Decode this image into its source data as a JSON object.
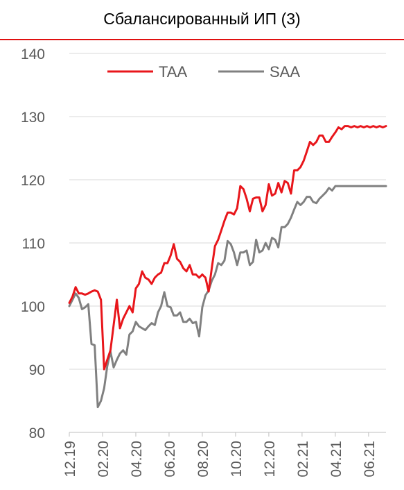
{
  "title": "Сбалансированный ИП (3)",
  "colors": {
    "accent": "#E01010",
    "taa": "#E8161B",
    "saa": "#808080",
    "axis": "#BFBFBF",
    "grid": "#D9D9D9",
    "text": "#595959"
  },
  "chart_data": {
    "type": "line",
    "ylim": [
      80,
      140
    ],
    "yticks": [
      80,
      90,
      100,
      110,
      120,
      130,
      140
    ],
    "xlim": [
      0,
      100
    ],
    "xtick_labels": [
      "12.19",
      "02.20",
      "04.20",
      "06.20",
      "08.20",
      "10.20",
      "12.20",
      "02.21",
      "04.21",
      "06.21"
    ],
    "xtick_positions": [
      0,
      10.5,
      21,
      31.5,
      42,
      52.5,
      63,
      73.5,
      84,
      94.5
    ],
    "grid": true,
    "legend": "top-left",
    "series": [
      {
        "name": "TAA",
        "color": "#E8161B",
        "x": [
          0,
          1,
          2,
          3,
          4,
          5,
          6,
          7,
          8,
          9,
          10,
          11,
          12,
          13,
          14,
          15,
          16,
          17,
          18,
          19,
          20,
          21,
          22,
          23,
          24,
          25,
          26,
          27,
          28,
          29,
          30,
          31,
          32,
          33,
          34,
          35,
          36,
          37,
          38,
          39,
          40,
          41,
          42,
          43,
          44,
          45,
          46,
          47,
          48,
          49,
          50,
          51,
          52,
          53,
          54,
          55,
          56,
          57,
          58,
          59,
          60,
          61,
          62,
          63,
          64,
          65,
          66,
          67,
          68,
          69,
          70,
          71,
          72,
          73,
          74,
          75,
          76,
          77,
          78,
          79,
          80,
          81,
          82,
          83,
          84,
          85,
          86,
          87,
          88,
          89,
          90,
          91,
          92,
          93,
          94,
          95,
          96,
          97,
          98,
          99,
          100
        ],
        "values": [
          100.5,
          101.5,
          103.0,
          102.0,
          102.0,
          101.8,
          102.0,
          102.3,
          102.5,
          102.3,
          101.0,
          90.0,
          91.5,
          93.0,
          97.0,
          101.0,
          96.5,
          98.0,
          99.0,
          100.0,
          99.0,
          102.8,
          103.5,
          105.5,
          104.5,
          104.2,
          103.5,
          104.5,
          105.0,
          105.3,
          106.8,
          106.8,
          108.0,
          109.8,
          107.5,
          107.0,
          106.0,
          105.5,
          106.5,
          105.0,
          105.0,
          104.5,
          105.0,
          104.5,
          102.3,
          106.0,
          109.5,
          110.5,
          112.0,
          113.5,
          114.8,
          114.8,
          114.5,
          115.5,
          119.0,
          118.5,
          117.0,
          115.0,
          117.0,
          117.2,
          117.2,
          115.0,
          116.0,
          119.3,
          117.5,
          117.8,
          119.5,
          118.0,
          119.8,
          119.5,
          117.8,
          121.5,
          121.5,
          122.0,
          123.0,
          124.5,
          126.0,
          125.5,
          126.0,
          127.0,
          127.0,
          126.0,
          126.0,
          126.8,
          127.5,
          128.3,
          128.0,
          128.5,
          128.5,
          128.3,
          128.5,
          128.3,
          128.5,
          128.3,
          128.5,
          128.3,
          128.5,
          128.3,
          128.5,
          128.3,
          128.5
        ]
      },
      {
        "name": "SAA",
        "color": "#808080",
        "x": [
          0,
          1,
          2,
          3,
          4,
          5,
          6,
          7,
          8,
          9,
          10,
          11,
          12,
          13,
          14,
          15,
          16,
          17,
          18,
          19,
          20,
          21,
          22,
          23,
          24,
          25,
          26,
          27,
          28,
          29,
          30,
          31,
          32,
          33,
          34,
          35,
          36,
          37,
          38,
          39,
          40,
          41,
          42,
          43,
          44,
          45,
          46,
          47,
          48,
          49,
          50,
          51,
          52,
          53,
          54,
          55,
          56,
          57,
          58,
          59,
          60,
          61,
          62,
          63,
          64,
          65,
          66,
          67,
          68,
          69,
          70,
          71,
          72,
          73,
          74,
          75,
          76,
          77,
          78,
          79,
          80,
          81,
          82,
          83,
          84,
          85,
          86,
          87,
          88,
          89,
          90,
          91,
          92,
          93,
          94,
          95,
          96,
          97,
          98,
          99,
          100
        ],
        "values": [
          100.0,
          101.0,
          102.0,
          101.3,
          99.5,
          99.8,
          100.3,
          94.0,
          93.8,
          84.0,
          85.0,
          87.0,
          90.5,
          92.8,
          90.3,
          91.5,
          92.5,
          93.0,
          92.3,
          95.5,
          96.0,
          97.5,
          96.8,
          96.5,
          96.2,
          96.8,
          97.3,
          97.0,
          99.0,
          100.0,
          102.2,
          100.0,
          99.8,
          98.5,
          98.5,
          99.0,
          97.5,
          97.5,
          98.0,
          97.3,
          97.5,
          95.2,
          99.8,
          101.7,
          102.5,
          104.0,
          105.0,
          106.8,
          106.5,
          107.2,
          110.3,
          109.8,
          108.5,
          106.5,
          108.5,
          108.5,
          108.8,
          106.5,
          107.0,
          110.5,
          108.5,
          108.8,
          110.0,
          109.0,
          110.8,
          110.5,
          109.3,
          112.5,
          112.5,
          113.0,
          114.0,
          115.3,
          116.5,
          116.0,
          116.5,
          117.3,
          117.3,
          116.5,
          116.3,
          117.0,
          117.5,
          118.0,
          118.7,
          118.3,
          119.0,
          119.0,
          119.0,
          119.0,
          119.0,
          119.0,
          119.0,
          119.0,
          119.0,
          119.0,
          119.0,
          119.0,
          119.0,
          119.0,
          119.0,
          119.0,
          119.0
        ]
      }
    ]
  }
}
